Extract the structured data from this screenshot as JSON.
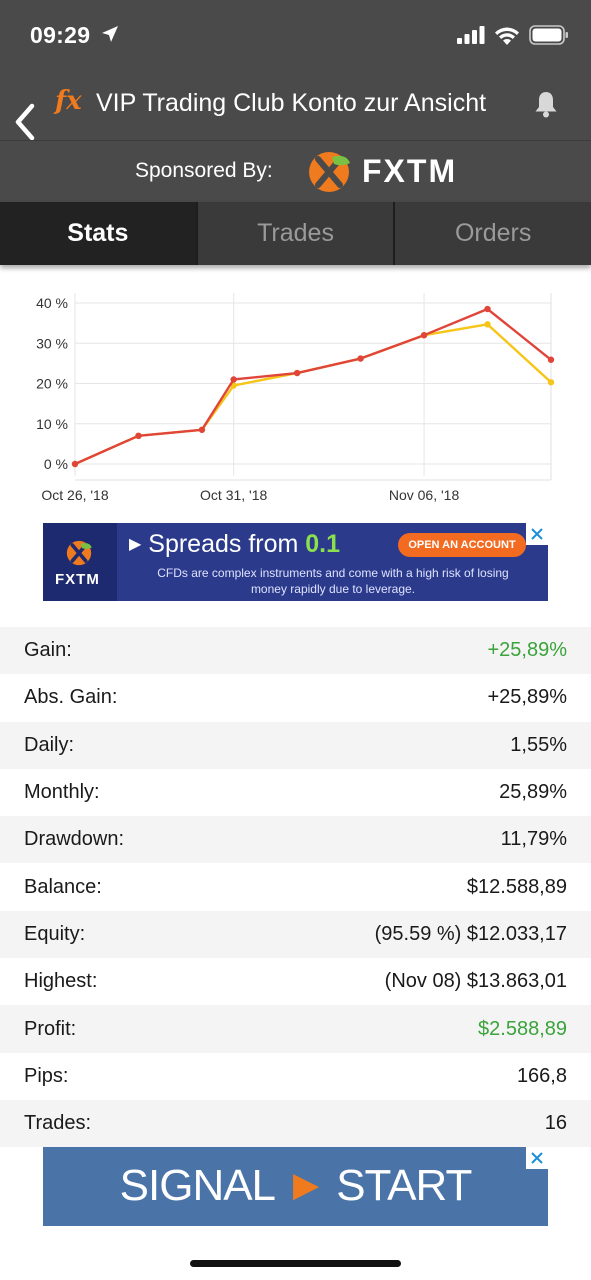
{
  "status_bar": {
    "time": "09:29"
  },
  "header": {
    "logo_text": "fx",
    "title": "VIP Trading Club Konto zur Ansicht",
    "sponsor_label": "Sponsored By:",
    "sponsor_brand": "FXTM"
  },
  "tabs": [
    {
      "label": "Stats",
      "active": true
    },
    {
      "label": "Trades",
      "active": false
    },
    {
      "label": "Orders",
      "active": false
    }
  ],
  "chart_data": {
    "type": "line",
    "x": [
      "2018-10-26",
      "2018-10-28",
      "2018-10-30",
      "2018-10-31",
      "2018-11-02",
      "2018-11-04",
      "2018-11-06",
      "2018-11-08",
      "2018-11-10"
    ],
    "x_tick_labels": [
      "Oct 26, '18",
      "Oct 31, '18",
      "Nov 06, '18"
    ],
    "y_tick_labels": [
      "40 %",
      "30 %",
      "20 %",
      "10 %",
      "0 %"
    ],
    "ylim": [
      0,
      40
    ],
    "grid": true,
    "series": [
      {
        "color": "#e0453a",
        "values": [
          0,
          7,
          8.5,
          21,
          22.6,
          26.2,
          32,
          38.5,
          25.9
        ]
      },
      {
        "color": "#f5c518",
        "values": [
          0,
          7,
          8.5,
          19.5,
          22.6,
          26.2,
          32,
          34.7,
          20.3
        ]
      }
    ]
  },
  "ad_top": {
    "brand": "FXTM",
    "headline": "Spreads from ",
    "headline_value": "0.1",
    "cta": "OPEN AN ACCOUNT",
    "disclaimer": "CFDs are complex instruments and come with a high risk of losing money rapidly due to leverage."
  },
  "stats": [
    {
      "label": "Gain:",
      "value": "+25,89%",
      "color": "#3aa33a"
    },
    {
      "label": "Abs. Gain:",
      "value": "+25,89%"
    },
    {
      "label": "Daily:",
      "value": "1,55%"
    },
    {
      "label": "Monthly:",
      "value": "25,89%"
    },
    {
      "label": "Drawdown:",
      "value": "11,79%"
    },
    {
      "label": "Balance:",
      "value": "$12.588,89"
    },
    {
      "label": "Equity:",
      "value": "(95.59 %) $12.033,17"
    },
    {
      "label": "Highest:",
      "value": "(Nov 08) $13.863,01"
    },
    {
      "label": "Profit:",
      "value": "$2.588,89",
      "color": "#3aa33a"
    },
    {
      "label": "Pips:",
      "value": "166,8"
    },
    {
      "label": "Trades:",
      "value": "16"
    }
  ],
  "ad_bottom": {
    "word1": "SIGNAL",
    "word2": "START"
  },
  "icons": [
    "location-arrow-icon",
    "signal-icon",
    "wifi-icon",
    "battery-icon",
    "back-chevron-icon",
    "bell-icon",
    "fxtm-logo-icon",
    "close-icon",
    "play-icon"
  ]
}
